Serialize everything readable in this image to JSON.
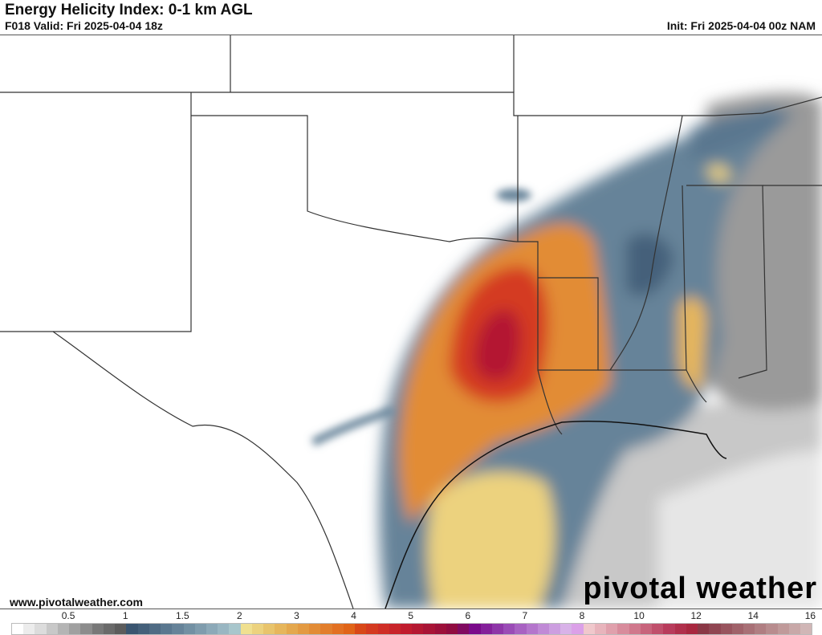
{
  "header": {
    "title": "Energy Helicity Index: 0-1 km AGL",
    "valid": "F018 Valid: Fri 2025-04-04 18z",
    "init": "Init: Fri 2025-04-04 00z NAM"
  },
  "footer": {
    "website": "www.pivotalweather.com",
    "logo": "pivotal weather"
  },
  "colorbar": {
    "ticks": [
      "0.5",
      "1",
      "1.5",
      "2",
      "3",
      "4",
      "5",
      "6",
      "7",
      "8",
      "10",
      "12",
      "14",
      "16"
    ],
    "colors": [
      "#ffffff",
      "#ececec",
      "#dcdcdc",
      "#c8c8c8",
      "#b4b4b4",
      "#a0a0a0",
      "#8c8c8c",
      "#787878",
      "#6a6a6a",
      "#5c5c5c",
      "#3a5570",
      "#44607a",
      "#4f6b84",
      "#5a778f",
      "#668399",
      "#7290a3",
      "#7f9cad",
      "#8ca9b8",
      "#99b6c2",
      "#a8c6cc",
      "#f0e090",
      "#ecd27e",
      "#e8c46c",
      "#e6b65c",
      "#e4a84e",
      "#e39a42",
      "#e28c36",
      "#e27e2c",
      "#e27022",
      "#e06418",
      "#d84818",
      "#d43a20",
      "#cf2e26",
      "#c8242a",
      "#c01c2e",
      "#b41832",
      "#a81436",
      "#9c103a",
      "#900c40",
      "#800a60",
      "#7a0a8a",
      "#84209a",
      "#8e36a8",
      "#9a4cb6",
      "#a862c2",
      "#b476cc",
      "#c08ad6",
      "#cc9ee0",
      "#d8b2e8",
      "#dba0e8",
      "#f0c8cc",
      "#e8b4bc",
      "#e0a0ac",
      "#d88c9c",
      "#d0788c",
      "#c8647c",
      "#c0506c",
      "#b83c5c",
      "#b0304c",
      "#a82840",
      "#8a3846",
      "#904652",
      "#98545e",
      "#a0626a",
      "#a87076",
      "#b07e82",
      "#b88c8e",
      "#c09a9a",
      "#c8a8a8",
      "#d0b6b6"
    ]
  }
}
